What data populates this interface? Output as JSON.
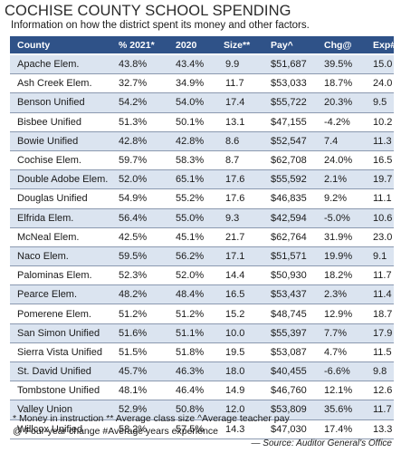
{
  "title": "COCHISE COUNTY SCHOOL SPENDING",
  "subtitle": "Information on how the district spent its money and other factors.",
  "columns": [
    "County",
    "% 2021*",
    "2020",
    "Size**",
    "Pay^",
    "Chg@",
    "Exp#"
  ],
  "rows": [
    [
      "Apache Elem.",
      "43.8%",
      "43.4%",
      "9.9",
      "$51,687",
      "39.5%",
      "15.0"
    ],
    [
      "Ash Creek Elem.",
      "32.7%",
      "34.9%",
      "11.7",
      "$53,033",
      "18.7%",
      "24.0"
    ],
    [
      "Benson Unified",
      "54.2%",
      "54.0%",
      "17.4",
      "$55,722",
      "20.3%",
      "9.5"
    ],
    [
      "Bisbee Unified",
      "51.3%",
      "50.1%",
      "13.1",
      "$47,155",
      "-4.2%",
      "10.2"
    ],
    [
      "Bowie Unified",
      "42.8%",
      "42.8%",
      "8.6",
      "$52,547",
      "7.4",
      "11.3"
    ],
    [
      "Cochise Elem.",
      "59.7%",
      "58.3%",
      "8.7",
      "$62,708",
      "24.0%",
      "16.5"
    ],
    [
      "Double Adobe Elem.",
      "52.0%",
      "65.1%",
      "17.6",
      "$55,592",
      "2.1%",
      "19.7"
    ],
    [
      "Douglas Unified",
      "54.9%",
      "55.2%",
      "17.6",
      "$46,835",
      "9.2%",
      "11.1"
    ],
    [
      "Elfrida Elem.",
      "56.4%",
      "55.0%",
      "9.3",
      "$42,594",
      "-5.0%",
      "10.6"
    ],
    [
      "McNeal Elem.",
      "42.5%",
      "45.1%",
      "21.7",
      "$62,764",
      "31.9%",
      "23.0"
    ],
    [
      "Naco Elem.",
      "59.5%",
      "56.2%",
      "17.1",
      "$51,571",
      "19.9%",
      "9.1"
    ],
    [
      "Palominas Elem.",
      "52.3%",
      "52.0%",
      "14.4",
      "$50,930",
      "18.2%",
      "11.7"
    ],
    [
      "Pearce Elem.",
      "48.2%",
      "48.4%",
      "16.5",
      "$53,437",
      "2.3%",
      "11.4"
    ],
    [
      "Pomerene Elem.",
      "51.2%",
      "51.2%",
      "15.2",
      "$48,745",
      "12.9%",
      "18.7"
    ],
    [
      "San Simon Unified",
      "51.6%",
      "51.1%",
      "10.0",
      "$55,397",
      "7.7%",
      "17.9"
    ],
    [
      "Sierra Vista Unified",
      "51.5%",
      "51.8%",
      "19.5",
      "$53,087",
      "4.7%",
      "11.5"
    ],
    [
      "St. David Unified",
      "45.7%",
      "46.3%",
      "18.0",
      "$40,455",
      "-6.6%",
      "9.8"
    ],
    [
      "Tombstone Unified",
      "48.1%",
      "46.4%",
      "14.9",
      "$46,760",
      "12.1%",
      "12.6"
    ],
    [
      "Valley Union",
      "52.9%",
      "50.8%",
      "12.0",
      "$53,809",
      "35.6%",
      "11.7"
    ],
    [
      "Willcox Unified",
      "58.2%",
      "57.5%",
      "14.3",
      "$47,030",
      "17.4%",
      "13.3"
    ]
  ],
  "notes": {
    "line1": "* Money in instruction  ** Average class size  ^Average teacher pay",
    "line2": "@ Four-year change  #Average years experience"
  },
  "source": "— Source: Auditor General's Office",
  "colors": {
    "header_bg": "#2f5288",
    "row_shade": "#dbe4f0",
    "row_rule": "#8b99b0"
  }
}
